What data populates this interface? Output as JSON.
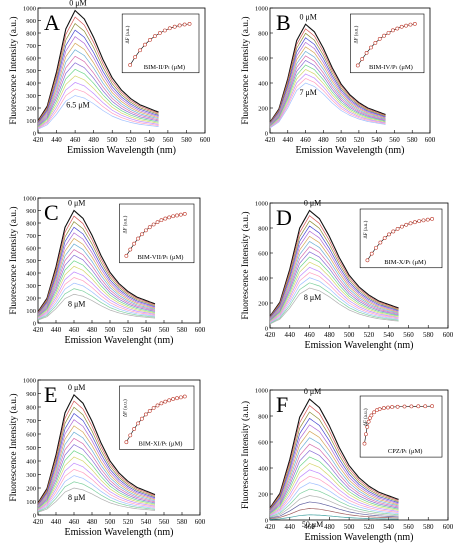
{
  "chart_data": {
    "type": "line",
    "emission_x": [
      420,
      430,
      440,
      450,
      460,
      470,
      480,
      490,
      500,
      510,
      520,
      530,
      540,
      550
    ],
    "emission_shape": [
      0.1,
      0.22,
      0.5,
      0.85,
      1.0,
      0.93,
      0.78,
      0.6,
      0.45,
      0.35,
      0.28,
      0.23,
      0.2,
      0.17
    ],
    "series_colors": [
      "#111111",
      "#d65a5a",
      "#8f8f3a",
      "#4a4ad0",
      "#b06bd6",
      "#d6a85a",
      "#6fb0d6",
      "#d66fae",
      "#8a6fd6",
      "#6fd68a",
      "#d6d66f",
      "#c08cff",
      "#ffa0c0",
      "#a0c0ff",
      "#80d0a0",
      "#b0b0b0",
      "#6060a0",
      "#a06060",
      "#40a0a0"
    ],
    "panels": [
      {
        "letter": "A",
        "xlabel": "Emission Wavelength (nm)",
        "ylabel": "Fluorescence Intensity (a.u.)",
        "xlim": [
          420,
          600
        ],
        "ylim": [
          0,
          1000
        ],
        "xticks": [
          "420",
          "440",
          "460",
          "480",
          "500",
          "520",
          "540",
          "560",
          "580",
          "600"
        ],
        "yticks": [
          "0",
          "100",
          "200",
          "300",
          "400",
          "500",
          "600",
          "700",
          "800",
          "900",
          "1000"
        ],
        "peak_max": 980,
        "peak_min": 300,
        "n_curves": 14,
        "top_label": "0 μM",
        "bottom_label": "6.5 μM",
        "inset": {
          "xlabel": "BIM-II/Pₜ (μM)",
          "ylabel": "ΔF (a.u.)",
          "x": [
            0.5,
            1.0,
            1.5,
            2.0,
            2.5,
            3.0,
            3.5,
            4.0,
            4.5,
            5.0,
            5.5,
            6.0,
            6.5
          ],
          "y": [
            0.15,
            0.4,
            0.62,
            0.8,
            0.95,
            1.07,
            1.17,
            1.25,
            1.32,
            1.37,
            1.41,
            1.44,
            1.46
          ]
        }
      },
      {
        "letter": "B",
        "xlabel": "Emission Wavelength (nm)",
        "ylabel": "Fluorescence Intensity (a.u.)",
        "xlim": [
          420,
          600
        ],
        "ylim": [
          0,
          1000
        ],
        "xticks": [
          "420",
          "440",
          "460",
          "480",
          "500",
          "520",
          "540",
          "560",
          "580",
          "600"
        ],
        "yticks": [
          "0",
          "200",
          "400",
          "600",
          "800",
          "1000"
        ],
        "peak_max": 870,
        "peak_min": 400,
        "n_curves": 14,
        "top_label": "0 μM",
        "bottom_label": "7 μM",
        "inset": {
          "xlabel": "BIM-IV/Pₜ (μM)",
          "ylabel": "ΔF (a.u.)",
          "x": [
            0.5,
            1.0,
            1.5,
            2.0,
            2.5,
            3.0,
            3.5,
            4.0,
            4.5,
            5.0,
            5.5,
            6.0,
            6.5,
            7.0
          ],
          "y": [
            0.12,
            0.3,
            0.47,
            0.62,
            0.75,
            0.86,
            0.95,
            1.03,
            1.1,
            1.15,
            1.2,
            1.23,
            1.26,
            1.28
          ]
        }
      },
      {
        "letter": "C",
        "xlabel": "Emission Wavelenght (nm)",
        "ylabel": "Fluorescence Intensity (a.u.)",
        "xlim": [
          420,
          600
        ],
        "ylim": [
          0,
          1000
        ],
        "xticks": [
          "420",
          "440",
          "460",
          "480",
          "500",
          "520",
          "540",
          "560",
          "580",
          "600"
        ],
        "yticks": [
          "0",
          "100",
          "200",
          "300",
          "400",
          "500",
          "600",
          "700",
          "800",
          "900",
          "1000"
        ],
        "peak_max": 900,
        "peak_min": 230,
        "n_curves": 16,
        "top_label": "0 μM",
        "bottom_label": "8 μM",
        "inset": {
          "xlabel": "BIM-VII/Pₜ (μM)",
          "ylabel": "ΔF (a.u.)",
          "x": [
            0.5,
            1.0,
            1.5,
            2.0,
            2.5,
            3.0,
            3.5,
            4.0,
            4.5,
            5.0,
            5.5,
            6.0,
            6.5,
            7.0,
            7.5,
            8.0
          ],
          "y": [
            0.1,
            0.26,
            0.41,
            0.54,
            0.65,
            0.75,
            0.83,
            0.9,
            0.96,
            1.01,
            1.05,
            1.08,
            1.11,
            1.13,
            1.15,
            1.17
          ]
        }
      },
      {
        "letter": "D",
        "xlabel": "Emission Wavelenght (nm)",
        "ylabel": "Fluorescence Intensity (a.u.)",
        "xlim": [
          420,
          600
        ],
        "ylim": [
          0,
          1000
        ],
        "xticks": [
          "420",
          "440",
          "460",
          "480",
          "500",
          "520",
          "540",
          "560",
          "580",
          "600"
        ],
        "yticks": [
          "0",
          "200",
          "400",
          "600",
          "800",
          "1000"
        ],
        "peak_max": 940,
        "peak_min": 320,
        "n_curves": 16,
        "top_label": "0 μM",
        "bottom_label": "8 μM",
        "inset": {
          "xlabel": "BIM-X/Pₜ (μM)",
          "ylabel": "ΔF (a.u.)",
          "x": [
            0.5,
            1.0,
            1.5,
            2.0,
            2.5,
            3.0,
            3.5,
            4.0,
            4.5,
            5.0,
            5.5,
            6.0,
            6.5,
            7.0,
            7.5,
            8.0
          ],
          "y": [
            0.12,
            0.3,
            0.46,
            0.6,
            0.72,
            0.82,
            0.9,
            0.97,
            1.03,
            1.08,
            1.12,
            1.15,
            1.18,
            1.2,
            1.22,
            1.24
          ]
        }
      },
      {
        "letter": "E",
        "xlabel": "Emission Wavelength (nm)",
        "ylabel": "Fluorescence Intensity (a.u.)",
        "xlim": [
          420,
          600
        ],
        "ylim": [
          0,
          1000
        ],
        "xticks": [
          "420",
          "440",
          "460",
          "480",
          "500",
          "520",
          "540",
          "560",
          "580",
          "600"
        ],
        "yticks": [
          "0",
          "100",
          "200",
          "300",
          "400",
          "500",
          "600",
          "700",
          "800",
          "900",
          "1000"
        ],
        "peak_max": 890,
        "peak_min": 200,
        "n_curves": 16,
        "top_label": "0 μM",
        "bottom_label": "8 μM",
        "inset": {
          "xlabel": "BIM-XI/Pₜ (μM)",
          "ylabel": "ΔF (a.u.)",
          "x": [
            0.5,
            1.0,
            1.5,
            2.0,
            2.5,
            3.0,
            3.5,
            4.0,
            4.5,
            5.0,
            5.5,
            6.0,
            6.5,
            7.0,
            7.5,
            8.0
          ],
          "y": [
            0.1,
            0.26,
            0.41,
            0.54,
            0.65,
            0.75,
            0.83,
            0.9,
            0.96,
            1.01,
            1.05,
            1.08,
            1.11,
            1.13,
            1.15,
            1.17
          ]
        }
      },
      {
        "letter": "F",
        "xlabel": "Emission Wavelength (nm)",
        "ylabel": "Fluorescence Intensity (a.u.)",
        "xlim": [
          420,
          600
        ],
        "ylim": [
          0,
          1000
        ],
        "xticks": [
          "420",
          "440",
          "460",
          "480",
          "500",
          "520",
          "540",
          "560",
          "580",
          "600"
        ],
        "yticks": [
          "0",
          "200",
          "400",
          "600",
          "800",
          "1000"
        ],
        "peak_max": 930,
        "peak_min": 40,
        "n_curves": 19,
        "top_label": "0 μM",
        "bottom_label": "50 μM",
        "inset": {
          "xlabel": "CPZ/Pₜ (μM)",
          "ylabel": "ΔF (a.u.)",
          "x": [
            1,
            2,
            3,
            4,
            5,
            6,
            8,
            10,
            12,
            15,
            18,
            21,
            25,
            30,
            35,
            40,
            45,
            50
          ],
          "y": [
            0.2,
            0.38,
            0.52,
            0.62,
            0.69,
            0.74,
            0.8,
            0.84,
            0.86,
            0.88,
            0.89,
            0.9,
            0.905,
            0.91,
            0.912,
            0.914,
            0.915,
            0.916
          ]
        }
      }
    ]
  }
}
